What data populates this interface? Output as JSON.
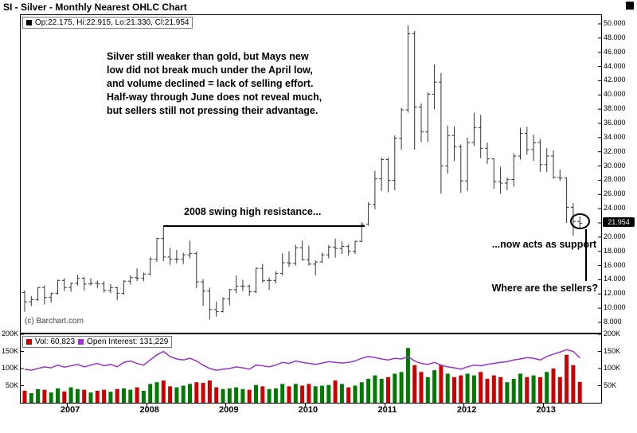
{
  "title_bar": {
    "title": "SI - Silver - Monthly Nearest OHLC Chart"
  },
  "price_pane": {
    "quote_text": "Op:22.175, Hi:22.915, Lo:21.330, Cl:21.954",
    "copyright": "(c) Barchart.com",
    "last_price_label": "21.954"
  },
  "annotations": {
    "commentary": "Silver still weaker than gold, but Mays new\nlow did not break much under the April low,\nand volume declined = lack of selling effort.\nHalf-way through June does not reveal much,\nbut sellers still not pressing their advantage.",
    "resistance_label": "2008 swing high resistance...",
    "support_label": "...now acts as support",
    "sellers_label": "Where are the sellers?"
  },
  "volume_pane": {
    "vol_label": "Vol: 60,823",
    "oi_label": "Open Interest: 131,229"
  },
  "colors": {
    "bar": "#333333",
    "vol_up": "#007a00",
    "vol_down": "#cc0000",
    "open_interest": "#9933cc",
    "last_price_bg": "#000000"
  },
  "chart_data": {
    "type": "ohlc",
    "title": "SI - Silver - Monthly Nearest OHLC Chart",
    "frequency": "monthly",
    "start": "2006-06",
    "last_close": 21.954,
    "y_axis": {
      "min": 8,
      "max": 50,
      "tick_step": 2,
      "side": "right"
    },
    "volume_axis": {
      "min": 0,
      "max": 200,
      "ticks": [
        200,
        150,
        100,
        50
      ],
      "suffix": "K"
    },
    "x_axis": {
      "years": [
        {
          "label": "2007",
          "index": 7
        },
        {
          "label": "2008",
          "index": 19
        },
        {
          "label": "2009",
          "index": 31
        },
        {
          "label": "2010",
          "index": 43
        },
        {
          "label": "2011",
          "index": 55
        },
        {
          "label": "2012",
          "index": 67
        },
        {
          "label": "2013",
          "index": 79
        }
      ]
    },
    "ohlc": [
      [
        12.2,
        12.5,
        9.5,
        10.9
      ],
      [
        10.9,
        11.7,
        10.3,
        11.2
      ],
      [
        11.2,
        13.0,
        11.0,
        12.9
      ],
      [
        12.9,
        13.2,
        10.5,
        11.5
      ],
      [
        11.5,
        12.2,
        10.8,
        12.1
      ],
      [
        12.1,
        14.0,
        11.9,
        13.9
      ],
      [
        13.9,
        14.2,
        12.4,
        12.9
      ],
      [
        12.9,
        13.6,
        12.3,
        13.5
      ],
      [
        13.5,
        14.7,
        13.2,
        14.2
      ],
      [
        14.2,
        14.4,
        12.5,
        13.4
      ],
      [
        13.4,
        14.2,
        13.2,
        13.5
      ],
      [
        13.5,
        13.9,
        12.8,
        13.4
      ],
      [
        13.4,
        13.8,
        12.2,
        12.5
      ],
      [
        12.5,
        13.4,
        12.1,
        12.9
      ],
      [
        12.9,
        13.0,
        11.1,
        12.1
      ],
      [
        12.1,
        13.9,
        11.9,
        13.8
      ],
      [
        13.8,
        14.6,
        13.3,
        14.3
      ],
      [
        14.3,
        15.6,
        13.8,
        14.2
      ],
      [
        14.2,
        15.0,
        13.8,
        14.8
      ],
      [
        14.8,
        17.2,
        14.6,
        16.9
      ],
      [
        16.9,
        19.9,
        16.5,
        19.8
      ],
      [
        19.8,
        21.4,
        16.6,
        17.2
      ],
      [
        17.2,
        18.5,
        16.1,
        16.9
      ],
      [
        16.9,
        18.2,
        16.3,
        16.9
      ],
      [
        16.9,
        17.8,
        16.2,
        17.5
      ],
      [
        17.5,
        19.5,
        17.0,
        17.7
      ],
      [
        17.7,
        18.0,
        12.8,
        13.7
      ],
      [
        13.7,
        14.1,
        10.3,
        12.4
      ],
      [
        12.4,
        12.9,
        8.4,
        9.8
      ],
      [
        9.8,
        10.9,
        8.8,
        9.5
      ],
      [
        9.5,
        11.5,
        9.4,
        11.3
      ],
      [
        11.3,
        12.7,
        10.4,
        12.6
      ],
      [
        12.6,
        14.6,
        12.1,
        13.1
      ],
      [
        13.1,
        14.0,
        12.4,
        13.1
      ],
      [
        13.1,
        13.3,
        11.7,
        12.3
      ],
      [
        12.3,
        15.7,
        12.1,
        15.6
      ],
      [
        15.6,
        16.2,
        13.6,
        13.9
      ],
      [
        13.9,
        14.3,
        12.6,
        13.9
      ],
      [
        13.9,
        15.2,
        13.5,
        14.9
      ],
      [
        14.9,
        17.7,
        14.6,
        16.4
      ],
      [
        16.4,
        18.0,
        15.8,
        16.3
      ],
      [
        16.3,
        18.9,
        16.0,
        18.5
      ],
      [
        18.5,
        19.5,
        16.7,
        16.8
      ],
      [
        16.8,
        18.8,
        16.0,
        16.2
      ],
      [
        16.2,
        16.7,
        14.6,
        16.5
      ],
      [
        16.5,
        17.8,
        16.4,
        17.5
      ],
      [
        17.5,
        18.9,
        17.0,
        18.6
      ],
      [
        18.6,
        19.8,
        17.1,
        18.4
      ],
      [
        18.4,
        19.4,
        17.6,
        18.7
      ],
      [
        18.7,
        19.0,
        17.4,
        18.0
      ],
      [
        18.0,
        19.5,
        17.6,
        19.4
      ],
      [
        19.4,
        22.1,
        19.3,
        21.8
      ],
      [
        21.8,
        24.9,
        21.6,
        24.6
      ],
      [
        24.6,
        29.3,
        23.9,
        28.2
      ],
      [
        28.2,
        31.2,
        26.5,
        30.9
      ],
      [
        30.9,
        31.2,
        26.3,
        28.0
      ],
      [
        28.0,
        34.3,
        26.6,
        33.9
      ],
      [
        33.9,
        38.2,
        32.3,
        37.9
      ],
      [
        37.9,
        49.8,
        37.5,
        48.6
      ],
      [
        48.6,
        49.0,
        32.3,
        38.3
      ],
      [
        38.3,
        38.8,
        33.4,
        34.8
      ],
      [
        34.8,
        40.4,
        33.4,
        40.1
      ],
      [
        40.1,
        44.3,
        38.0,
        41.8
      ],
      [
        41.8,
        43.1,
        26.1,
        30.0
      ],
      [
        30.0,
        35.7,
        28.9,
        34.3
      ],
      [
        34.3,
        35.6,
        30.7,
        32.7
      ],
      [
        32.7,
        33.0,
        26.2,
        27.9
      ],
      [
        27.9,
        34.0,
        26.5,
        33.3
      ],
      [
        33.3,
        37.5,
        32.8,
        35.4
      ],
      [
        35.4,
        37.2,
        31.1,
        32.5
      ],
      [
        32.5,
        33.3,
        30.3,
        31.0
      ],
      [
        31.0,
        31.1,
        26.8,
        27.8
      ],
      [
        27.8,
        29.9,
        26.1,
        27.6
      ],
      [
        27.6,
        28.4,
        26.6,
        28.1
      ],
      [
        28.1,
        31.8,
        27.1,
        31.4
      ],
      [
        31.4,
        35.4,
        30.9,
        34.6
      ],
      [
        34.6,
        35.5,
        31.6,
        32.3
      ],
      [
        32.3,
        34.4,
        30.7,
        33.3
      ],
      [
        33.3,
        33.8,
        29.2,
        30.2
      ],
      [
        30.2,
        32.5,
        29.2,
        31.4
      ],
      [
        31.4,
        32.2,
        28.2,
        28.4
      ],
      [
        28.4,
        29.5,
        27.9,
        28.3
      ],
      [
        28.3,
        28.4,
        22.0,
        24.2
      ],
      [
        24.2,
        24.8,
        20.2,
        22.2
      ],
      [
        22.175,
        22.915,
        21.33,
        21.954
      ]
    ],
    "volume_k": [
      35,
      28,
      40,
      38,
      30,
      42,
      33,
      45,
      40,
      38,
      30,
      35,
      38,
      32,
      40,
      42,
      38,
      45,
      35,
      55,
      60,
      65,
      48,
      45,
      50,
      55,
      60,
      58,
      65,
      45,
      40,
      42,
      45,
      40,
      38,
      52,
      48,
      40,
      42,
      55,
      48,
      55,
      50,
      55,
      48,
      50,
      52,
      65,
      55,
      45,
      50,
      60,
      70,
      80,
      70,
      75,
      85,
      90,
      160,
      110,
      90,
      75,
      95,
      110,
      85,
      75,
      80,
      85,
      80,
      90,
      70,
      80,
      75,
      60,
      70,
      85,
      75,
      80,
      75,
      90,
      100,
      75,
      140,
      110,
      61
    ],
    "open_interest_k": [
      98,
      95,
      100,
      105,
      102,
      110,
      104,
      108,
      112,
      105,
      110,
      115,
      108,
      112,
      105,
      118,
      122,
      115,
      110,
      125,
      140,
      150,
      135,
      128,
      125,
      130,
      122,
      110,
      100,
      95,
      98,
      100,
      105,
      102,
      98,
      110,
      108,
      105,
      110,
      118,
      115,
      122,
      118,
      115,
      112,
      116,
      120,
      118,
      116,
      118,
      122,
      130,
      135,
      132,
      128,
      125,
      130,
      128,
      135,
      122,
      115,
      112,
      118,
      110,
      105,
      102,
      98,
      105,
      110,
      108,
      112,
      115,
      118,
      120,
      125,
      128,
      132,
      130,
      125,
      135,
      142,
      148,
      155,
      150,
      131
    ]
  }
}
